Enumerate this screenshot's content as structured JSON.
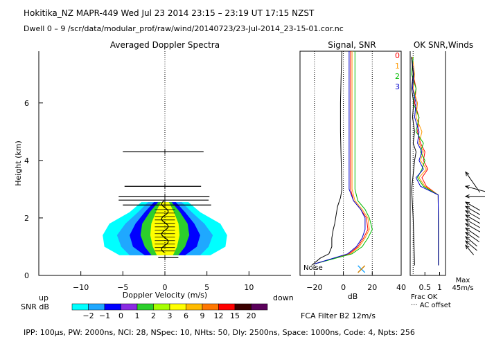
{
  "header": {
    "title": "Hokitika_NZ   MAPR-449   Wed Jul 23 2014 23:15 – 23:19 UT 17:15 NZST",
    "dwell": "Dwell   0 –   9     /scr/data/modular_prof/raw/wind/20140723/23-Jul-2014_23-15-01.cor.nc"
  },
  "panels": {
    "spectra_title": "Averaged Doppler Spectra",
    "signal_title": "Signal, SNR",
    "ok_title": "OK SNR,Winds"
  },
  "labels": {
    "noise": "Noise",
    "up": "up",
    "down": "down",
    "snr_db": "SNR dB",
    "db_unit": "dB",
    "frac_ok": "Frac OK",
    "ac_offset": "··· AC offset",
    "max": "Max",
    "max_speed": "45m/s",
    "fca_filter": "FCA Filter B2 12m/s",
    "footer": "IPP: 100µs,  PW: 2000ns,  NCI:  28,  NSpec: 10,  NHts: 50,  Dly: 2500ns,  Space: 1000ns,  Code: 4,  Npts: 256"
  },
  "legend_numbers": [
    {
      "label": "0",
      "color": "#ff0000"
    },
    {
      "label": "1",
      "color": "#ff9900"
    },
    {
      "label": "2",
      "color": "#00bb00"
    },
    {
      "label": "3",
      "color": "#0000cc"
    }
  ],
  "snr_colorbar": {
    "colors": [
      "#00ffff",
      "#1fa8ff",
      "#0000ff",
      "#8a2be2",
      "#2ccf2c",
      "#a6ff00",
      "#ffff00",
      "#ffbb00",
      "#ff7700",
      "#ff0000",
      "#3a0000",
      "#5a005a"
    ],
    "labels": [
      "−2",
      "−1",
      "0",
      "1",
      "2",
      "3",
      "6",
      "9",
      "12",
      "15",
      "20"
    ]
  },
  "chart_data": [
    {
      "type": "heatmap",
      "title": "Averaged Doppler Spectra",
      "xlabel": "Doppler Velocity (m/s)",
      "ylabel": "Height (km)",
      "xlim": [
        -15,
        15
      ],
      "ylim": [
        0,
        7.8
      ],
      "xticks": [
        "−10",
        "−5",
        "0",
        "5",
        "10"
      ],
      "xtick_values": [
        -10,
        -5,
        0,
        5,
        10
      ],
      "yticks": [
        "0",
        "2",
        "4",
        "6"
      ],
      "ytick_values": [
        0,
        2,
        4,
        6
      ],
      "spectral_width_bars": [
        {
          "height": 0.62,
          "vmin": -0.8,
          "vmax": 1.6
        },
        {
          "height": 2.45,
          "vmin": -5.0,
          "vmax": 5.5
        },
        {
          "height": 2.62,
          "vmin": -5.5,
          "vmax": 5.2
        },
        {
          "height": 2.75,
          "vmin": -5.5,
          "vmax": 5.3
        },
        {
          "height": 3.1,
          "vmin": -4.8,
          "vmax": 4.3
        },
        {
          "height": 4.3,
          "vmin": -5.0,
          "vmax": 4.6
        }
      ],
      "snr_profile": [
        {
          "height": 0.7,
          "halfwidth": [
            5.4,
            4.2,
            2.4,
            1.6
          ]
        },
        {
          "height": 1.0,
          "halfwidth": [
            7.2,
            5.2,
            3.8,
            2.4
          ]
        },
        {
          "height": 1.4,
          "halfwidth": [
            7.4,
            5.7,
            4.2,
            2.9
          ]
        },
        {
          "height": 1.8,
          "halfwidth": [
            6.6,
            4.7,
            3.5,
            2.7
          ]
        },
        {
          "height": 2.2,
          "halfwidth": [
            4.2,
            3.2,
            2.4,
            1.8
          ]
        },
        {
          "height": 2.55,
          "halfwidth": [
            2.8,
            2.0,
            1.3,
            0.8
          ]
        }
      ]
    },
    {
      "type": "line",
      "title": "Signal, SNR",
      "xlabel": "dB",
      "xlim": [
        -30,
        40
      ],
      "ylim": [
        0,
        7.8
      ],
      "xticks": [
        "−20",
        "0",
        "20",
        "40"
      ],
      "xtick_values": [
        -20,
        0,
        20,
        40
      ],
      "series": [
        {
          "name": "noise",
          "color": "#000000",
          "x": [
            -22,
            -16,
            -10,
            -8,
            -8,
            -7,
            -6,
            -5,
            -4,
            -2,
            -1,
            -1.5,
            -2,
            -2,
            -1.5,
            -1
          ],
          "y": [
            0.35,
            0.6,
            0.75,
            1.0,
            1.3,
            1.6,
            1.8,
            2.1,
            2.4,
            2.7,
            3.0,
            4.0,
            5.0,
            6.0,
            7.0,
            7.8
          ]
        },
        {
          "name": "0",
          "color": "#ff0000",
          "x": [
            -20,
            4,
            10,
            14,
            17,
            16,
            12,
            7,
            5,
            5,
            5,
            5,
            5
          ],
          "y": [
            0.4,
            0.75,
            1.0,
            1.3,
            1.6,
            2.0,
            2.3,
            2.6,
            3.0,
            4.0,
            5.0,
            6.5,
            7.8
          ]
        },
        {
          "name": "1",
          "color": "#ff9900",
          "x": [
            -20,
            5,
            11,
            15,
            18,
            17,
            13,
            8,
            6,
            6,
            6,
            6,
            6
          ],
          "y": [
            0.4,
            0.75,
            1.0,
            1.3,
            1.6,
            2.0,
            2.3,
            2.6,
            3.0,
            4.0,
            5.0,
            6.5,
            7.8
          ]
        },
        {
          "name": "2",
          "color": "#00bb00",
          "x": [
            -20,
            6,
            13,
            17,
            20,
            18,
            15,
            10,
            8,
            8,
            8,
            8,
            8
          ],
          "y": [
            0.4,
            0.75,
            1.0,
            1.3,
            1.6,
            2.0,
            2.3,
            2.6,
            3.0,
            4.0,
            5.0,
            6.5,
            7.8
          ]
        },
        {
          "name": "3",
          "color": "#0000cc",
          "x": [
            -20,
            3,
            9,
            13,
            15,
            15,
            12,
            7,
            4,
            4,
            4,
            4,
            4
          ],
          "y": [
            0.4,
            0.75,
            1.0,
            1.3,
            1.6,
            2.0,
            2.3,
            2.6,
            3.0,
            4.0,
            5.0,
            6.5,
            7.8
          ]
        }
      ]
    },
    {
      "type": "line",
      "title": "OK SNR,Winds",
      "xlabel": "Frac OK",
      "xlim": [
        0,
        1.2
      ],
      "ylim": [
        0,
        7.8
      ],
      "xticks": [
        "0.5",
        "1"
      ],
      "xtick_values": [
        0.5,
        1
      ],
      "series": [
        {
          "name": "0",
          "color": "#ff0000",
          "x": [
            0.05,
            0.1,
            0.2,
            0.15,
            0.3,
            0.25,
            0.35,
            0.5,
            0.45,
            0.6,
            0.4,
            0.55,
            0.95,
            0.96,
            0.96
          ],
          "y": [
            7.6,
            7.0,
            6.5,
            6.0,
            5.5,
            5.0,
            4.6,
            4.3,
            4.0,
            3.7,
            3.4,
            3.1,
            2.8,
            1.5,
            0.35
          ]
        },
        {
          "name": "1",
          "color": "#ff9900",
          "x": [
            0.08,
            0.15,
            0.1,
            0.25,
            0.2,
            0.4,
            0.3,
            0.45,
            0.35,
            0.55,
            0.3,
            0.5,
            0.95,
            0.96,
            0.96
          ],
          "y": [
            7.6,
            7.0,
            6.5,
            6.0,
            5.5,
            5.0,
            4.6,
            4.3,
            4.0,
            3.7,
            3.4,
            3.1,
            2.8,
            1.5,
            0.35
          ]
        },
        {
          "name": "2",
          "color": "#00bb00",
          "x": [
            0.1,
            0.05,
            0.2,
            0.1,
            0.3,
            0.2,
            0.45,
            0.35,
            0.5,
            0.4,
            0.25,
            0.45,
            0.95,
            0.96,
            0.96
          ],
          "y": [
            7.6,
            7.0,
            6.5,
            6.0,
            5.5,
            5.0,
            4.6,
            4.3,
            4.0,
            3.7,
            3.4,
            3.1,
            2.8,
            1.5,
            0.35
          ]
        },
        {
          "name": "3",
          "color": "#0000cc",
          "x": [
            0.05,
            0.12,
            0.08,
            0.2,
            0.15,
            0.3,
            0.25,
            0.4,
            0.3,
            0.45,
            0.2,
            0.35,
            0.95,
            0.96,
            0.96
          ],
          "y": [
            7.6,
            7.0,
            6.5,
            6.0,
            5.5,
            5.0,
            4.6,
            4.3,
            4.0,
            3.7,
            3.4,
            3.1,
            2.8,
            1.5,
            0.35
          ]
        },
        {
          "name": "ok-fraction",
          "color": "#000000",
          "x": [
            0.05,
            0.1,
            0.05,
            0.12,
            0.08,
            0.15,
            0.1,
            0.2,
            0.15,
            0.1,
            0.05,
            0.1,
            0.15
          ],
          "y": [
            7.6,
            7.0,
            6.5,
            6.0,
            5.5,
            5.0,
            4.6,
            4.3,
            4.0,
            3.5,
            3.0,
            2.0,
            0.35
          ]
        }
      ]
    },
    {
      "type": "scatter",
      "title": "Winds",
      "xlabel": "Max 45m/s",
      "ylim": [
        0,
        7.8
      ],
      "vectors": [
        {
          "height": 3.6,
          "speed": 30,
          "direction_deg": 215
        },
        {
          "height": 3.1,
          "speed": 25,
          "direction_deg": 255
        },
        {
          "height": 2.75,
          "speed": 30,
          "direction_deg": 270
        },
        {
          "height": 2.55,
          "speed": 20,
          "direction_deg": 240
        },
        {
          "height": 2.4,
          "speed": 20,
          "direction_deg": 240
        },
        {
          "height": 2.25,
          "speed": 20,
          "direction_deg": 240
        },
        {
          "height": 2.1,
          "speed": 20,
          "direction_deg": 240
        },
        {
          "height": 1.95,
          "speed": 20,
          "direction_deg": 240
        },
        {
          "height": 1.8,
          "speed": 20,
          "direction_deg": 240
        },
        {
          "height": 1.65,
          "speed": 20,
          "direction_deg": 235
        },
        {
          "height": 1.5,
          "speed": 20,
          "direction_deg": 235
        },
        {
          "height": 1.35,
          "speed": 18,
          "direction_deg": 230
        },
        {
          "height": 1.2,
          "speed": 18,
          "direction_deg": 230
        },
        {
          "height": 1.05,
          "speed": 15,
          "direction_deg": 220
        }
      ]
    }
  ]
}
